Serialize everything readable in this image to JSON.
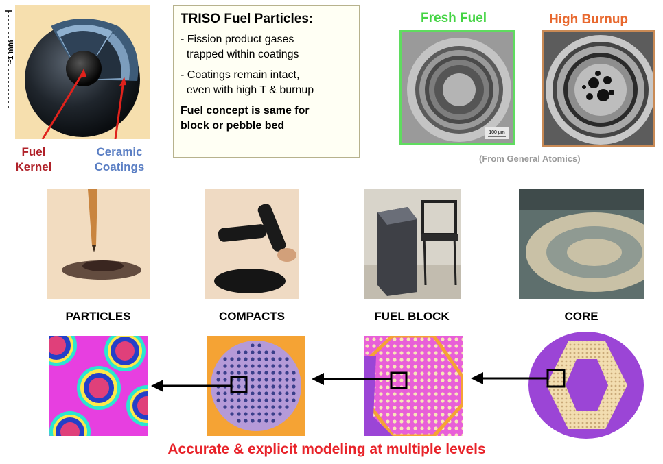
{
  "scale_label": "~1 mm",
  "particle_labels": {
    "fuel_kernel": [
      "Fuel",
      "Kernel"
    ],
    "ceramic_coatings": [
      "Ceramic",
      "Coatings"
    ]
  },
  "triso_box": {
    "title": "TRISO Fuel Particles:",
    "bullets": [
      [
        "- Fission product gases",
        "  trapped within coatings"
      ],
      [
        "- Coatings remain intact,",
        "  even with high T & burnup"
      ]
    ],
    "concept": [
      "Fuel concept is same for",
      "block or pebble bed"
    ]
  },
  "micrographs": {
    "fresh_title": "Fresh Fuel",
    "high_title": "High Burnup",
    "scale_bar": "100 μm",
    "source": "(From General Atomics)"
  },
  "stages": [
    {
      "label": "PARTICLES"
    },
    {
      "label": "COMPACTS"
    },
    {
      "label": "FUEL BLOCK"
    },
    {
      "label": "CORE"
    }
  ],
  "footer": "Accurate & explicit modeling at multiple levels",
  "colors": {
    "red_label": "#b0222a",
    "blue_label": "#5b7fc4",
    "fresh_green": "#44d444",
    "high_orange": "#e8682e",
    "footer_red": "#e8232a",
    "model_magenta": "#e63fe0",
    "model_orange": "#f5a334",
    "model_purple": "#9b45d6"
  }
}
